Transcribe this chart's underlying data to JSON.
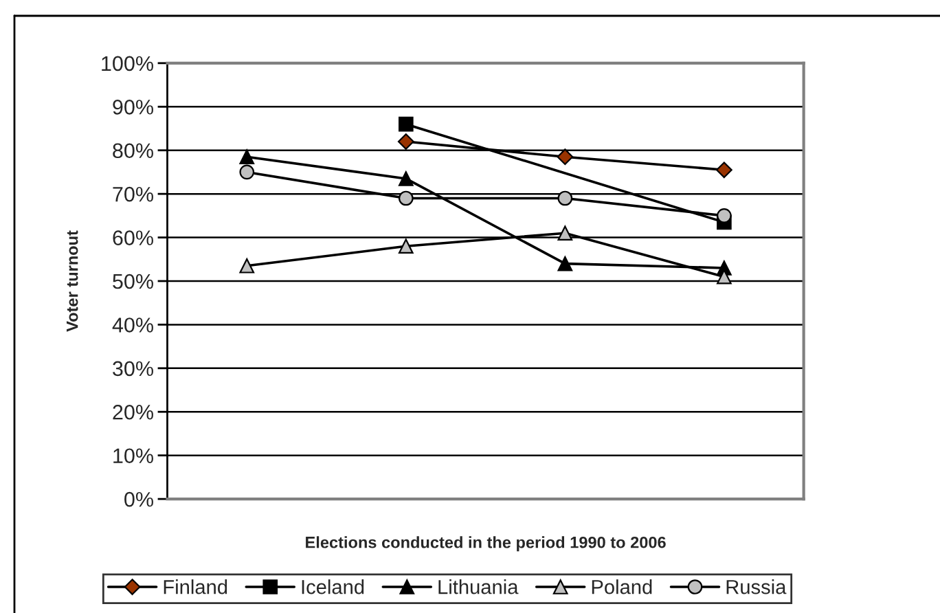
{
  "chart_data": {
    "type": "line",
    "xlabel": "Elections conducted in the period 1990 to 2006",
    "ylabel": "Voter turnout",
    "categories": [
      null,
      null,
      null,
      null
    ],
    "series": [
      {
        "name": "Finland",
        "color": "#993300",
        "marker": "diamond",
        "values": [
          null,
          82,
          78.5,
          75.5
        ]
      },
      {
        "name": "Iceland",
        "color": "#000000",
        "marker": "square",
        "values": [
          null,
          86,
          null,
          63.5
        ]
      },
      {
        "name": "Lithuania",
        "color": "#000000",
        "marker": "triangle",
        "values": [
          78.5,
          73.5,
          54,
          53
        ]
      },
      {
        "name": "Poland",
        "color": "#c0c0c0",
        "marker": "triangle",
        "values": [
          53.5,
          58,
          61,
          51
        ]
      },
      {
        "name": "Russia",
        "color": "#c0c0c0",
        "marker": "circle",
        "values": [
          75,
          69,
          69,
          65
        ]
      }
    ],
    "ylim": [
      0,
      100
    ],
    "yticks": [
      {
        "value": 0,
        "label": "0%"
      },
      {
        "value": 10,
        "label": "10%"
      },
      {
        "value": 20,
        "label": "20%"
      },
      {
        "value": 30,
        "label": "30%"
      },
      {
        "value": 40,
        "label": "40%"
      },
      {
        "value": 50,
        "label": "50%"
      },
      {
        "value": 60,
        "label": "60%"
      },
      {
        "value": 70,
        "label": "70%"
      },
      {
        "value": 80,
        "label": "80%"
      },
      {
        "value": 90,
        "label": "90%"
      },
      {
        "value": 100,
        "label": "100%"
      }
    ],
    "grid": "y",
    "legend": "bottom",
    "line_style": "solid"
  }
}
